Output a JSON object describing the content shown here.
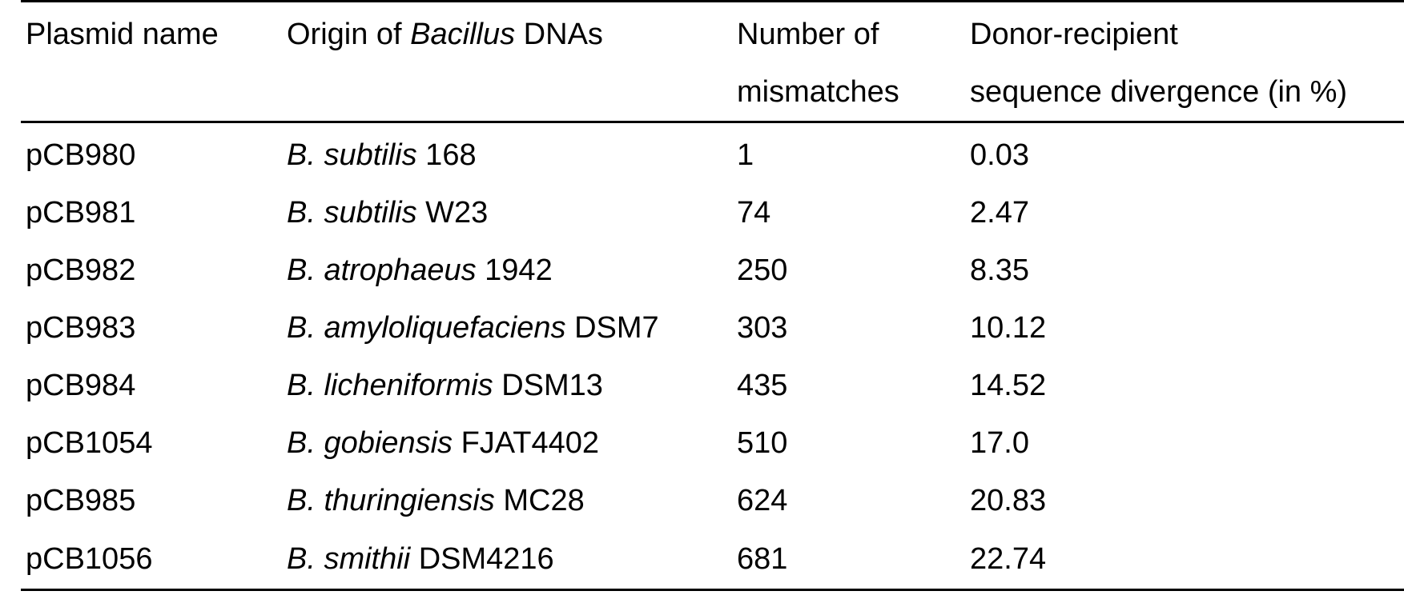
{
  "table": {
    "headers": {
      "plasmid": "Plasmid name",
      "origin_prefix": "Origin of ",
      "origin_italic": "Bacillus",
      "origin_suffix": " DNAs",
      "mismatches_line1": "Number of",
      "mismatches_line2": "mismatches",
      "divergence_line1": "Donor-recipient",
      "divergence_line2": "sequence divergence (in %)"
    },
    "rows": [
      {
        "plasmid": "pCB980",
        "species": "B. subtilis",
        "strain": " 168",
        "mismatches": "1",
        "divergence": "0.03"
      },
      {
        "plasmid": "pCB981",
        "species": "B. subtilis",
        "strain": " W23",
        "mismatches": "74",
        "divergence": "2.47"
      },
      {
        "plasmid": "pCB982",
        "species": "B. atrophaeus",
        "strain": " 1942",
        "mismatches": "250",
        "divergence": "8.35"
      },
      {
        "plasmid": "pCB983",
        "species": "B. amyloliquefaciens",
        "strain": " DSM7",
        "mismatches": "303",
        "divergence": "10.12"
      },
      {
        "plasmid": "pCB984",
        "species": "B. licheniformis",
        "strain": " DSM13",
        "mismatches": "435",
        "divergence": "14.52"
      },
      {
        "plasmid": "pCB1054",
        "species": "B. gobiensis",
        "strain": " FJAT4402",
        "mismatches": "510",
        "divergence": "17.0"
      },
      {
        "plasmid": "pCB985",
        "species": "B. thuringiensis",
        "strain": " MC28",
        "mismatches": "624",
        "divergence": "20.83"
      },
      {
        "plasmid": "pCB1056",
        "species": "B. smithii",
        "strain": " DSM4216",
        "mismatches": "681",
        "divergence": "22.74"
      }
    ]
  }
}
